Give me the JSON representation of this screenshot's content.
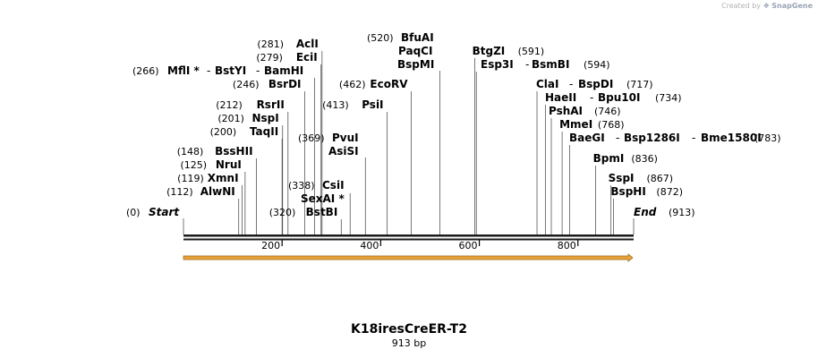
{
  "watermark": {
    "created_by": "Created by",
    "brand": "SnapGene"
  },
  "sequence": {
    "name": "K18iresCreER-T2",
    "length_label": "913 bp",
    "length": 913
  },
  "axis": {
    "ticks": [
      "200",
      "400",
      "600",
      "800"
    ],
    "tick_values": [
      200,
      400,
      600,
      800
    ]
  },
  "ends": {
    "start": {
      "label": "Start",
      "position": "(0)"
    },
    "end": {
      "label": "End",
      "position": "(913)"
    }
  },
  "sites": [
    {
      "pos": 112,
      "pos_label": "(112)",
      "names": [
        "AlwNI"
      ]
    },
    {
      "pos": 119,
      "pos_label": "(119)",
      "names": [
        "XmnI"
      ]
    },
    {
      "pos": 125,
      "pos_label": "(125)",
      "names": [
        "NruI"
      ]
    },
    {
      "pos": 148,
      "pos_label": "(148)",
      "names": [
        "BssHII"
      ]
    },
    {
      "pos": 200,
      "pos_label": "(200)",
      "names": [
        "TaqII"
      ]
    },
    {
      "pos": 201,
      "pos_label": "(201)",
      "names": [
        "NspI"
      ]
    },
    {
      "pos": 212,
      "pos_label": "(212)",
      "names": [
        "RsrII"
      ]
    },
    {
      "pos": 246,
      "pos_label": "(246)",
      "names": [
        "BsrDI"
      ]
    },
    {
      "pos": 266,
      "pos_label": "(266)",
      "names": [
        "MflI *",
        "BstYI",
        "BamHI"
      ]
    },
    {
      "pos": 279,
      "pos_label": "(279)",
      "names": [
        "EciI"
      ]
    },
    {
      "pos": 281,
      "pos_label": "(281)",
      "names": [
        "AclI"
      ]
    },
    {
      "pos": 320,
      "pos_label": "(320)",
      "names": [
        "BstBI"
      ]
    },
    {
      "pos": 338,
      "pos_label": "(338)",
      "names": [
        "SexAI *",
        "CsiI"
      ]
    },
    {
      "pos": 369,
      "pos_label": "(369)",
      "names": [
        "AsiSI",
        "PvuI"
      ]
    },
    {
      "pos": 413,
      "pos_label": "(413)",
      "names": [
        "PsiI"
      ]
    },
    {
      "pos": 462,
      "pos_label": "(462)",
      "names": [
        "EcoRV"
      ]
    },
    {
      "pos": 520,
      "pos_label": "(520)",
      "names": [
        "BspMI",
        "PaqCI",
        "BfuAI"
      ]
    },
    {
      "pos": 591,
      "pos_label": "(591)",
      "names": [
        "BtgZI"
      ]
    },
    {
      "pos": 594,
      "pos_label": "(594)",
      "names": [
        "Esp3I",
        "BsmBI"
      ]
    },
    {
      "pos": 717,
      "pos_label": "(717)",
      "names": [
        "ClaI",
        "BspDI"
      ]
    },
    {
      "pos": 734,
      "pos_label": "(734)",
      "names": [
        "HaeII",
        "Bpu10I"
      ]
    },
    {
      "pos": 746,
      "pos_label": "(746)",
      "names": [
        "PshAI"
      ]
    },
    {
      "pos": 768,
      "pos_label": "(768)",
      "names": [
        "MmeI"
      ]
    },
    {
      "pos": 783,
      "pos_label": "(783)",
      "names": [
        "BaeGI",
        "Bsp1286I",
        "Bme1580I"
      ]
    },
    {
      "pos": 836,
      "pos_label": "(836)",
      "names": [
        "BpmI"
      ]
    },
    {
      "pos": 867,
      "pos_label": "(867)",
      "names": [
        "SspI"
      ]
    },
    {
      "pos": 872,
      "pos_label": "(872)",
      "names": [
        "BspHI"
      ]
    }
  ],
  "feature": {
    "color": "#e8a33a",
    "stroke": "#9a6410",
    "from": 0,
    "to": 913
  }
}
